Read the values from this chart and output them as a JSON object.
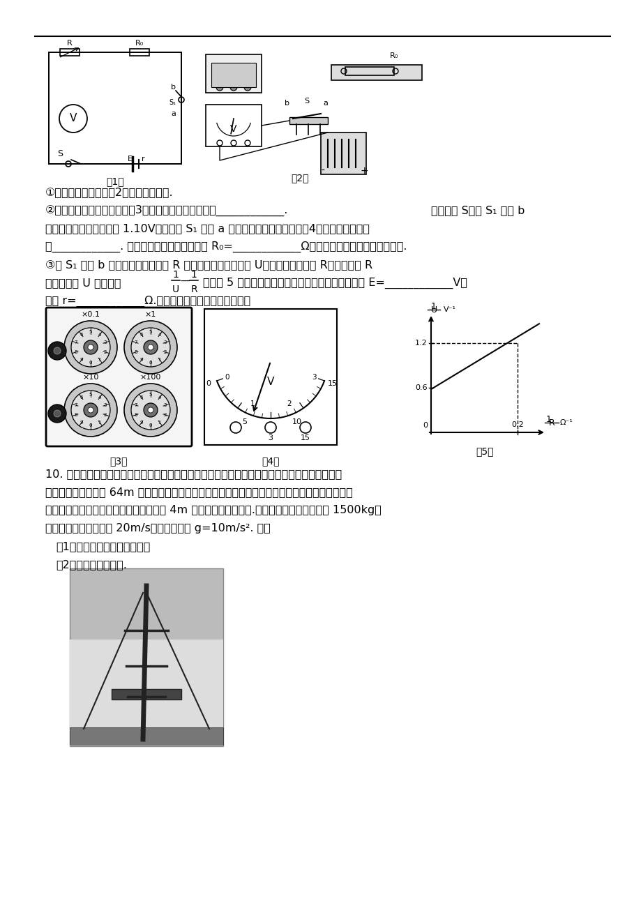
{
  "page_bg": "#ffffff",
  "text_color": "#000000",
  "line1": "①按实验电路图在图（2）中连接实物图.",
  "line2a": "②先将电阵筱电阵调至如图（3）所示，则其电阵读数为____________.",
  "line2b": "闭合开关 S，将 S₁ 打到 b",
  "line3": "端，读出电压表的读数为 1.10V；然后将 S₁ 打到 a 端，此时电压表读数如图（4）所示，则其读数",
  "line4": "为____________. 根据以上测量数据可得电阵 R₀=____________Ω（计算结果保留两位有效数字）.",
  "line5": "③将 S₁ 打到 b 端，读出电阵筱读数 R 以及相应的电压表读数 U，不断调节电阵筱 R，得到多组 R",
  "line6a": "値与相应的 U 値，作出",
  "line6b": "图如图 5 所示，则通过图象可以得到该电源的电动势 E=____________V，",
  "line7": "内阵 r=____________Ω.（计算结果保留三位有效数字）",
  "q10_line1": "10. 在游乐场，有一种大型游乐设施跳楼机，如图所示，参加游戏的游客被安全带固定在座椅上，",
  "q10_line2": "提升到离地最大高度 64m 处，然后由静止释放，开始下该过程可认为自由落体运动，然后受到一恒",
  "q10_line3": "定阵力而做匀减速运动，且下该到离地面 4m 高处速度恰好减为零.已知游客和座椅总质量为 1500kg，",
  "q10_line4": "下该过程中最大速度为 20m/s，重力加速度 g=10m/s². 求：",
  "q10_sub1": "（1）游客下该过程的总时间；",
  "q10_sub2": "（2）恒定阵力的大小."
}
